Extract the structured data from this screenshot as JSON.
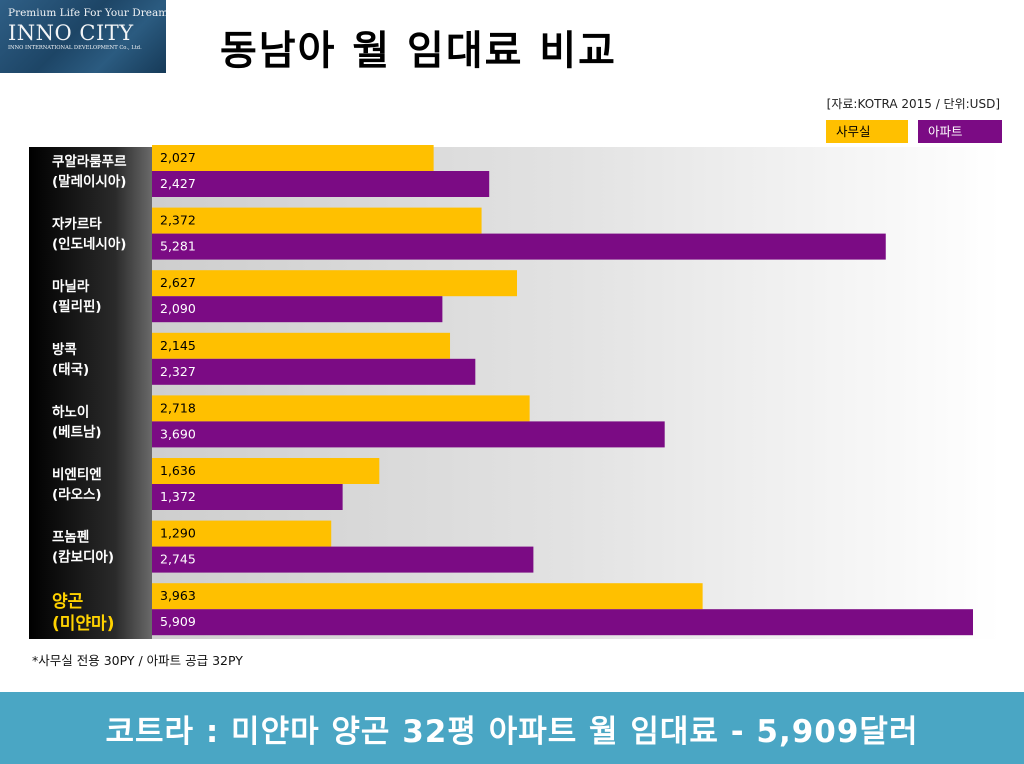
{
  "logo": {
    "tagline": "Premium Life For Your Dream",
    "brand": "INNO CITY",
    "company": "INNO INTERNATIONAL DEVELOPMENT Co., Ltd."
  },
  "title": "동남아 월 임대료 비교",
  "source_note": "[자료:KOTRA 2015 / 단위:USD]",
  "footnote": "*사무실 전용 30PY / 아파트 공급 32PY",
  "banner": "코트라 : 미얀마 양곤 32평 아파트 월 임대료 - 5,909달러",
  "colors": {
    "office": "#ffc000",
    "apartment": "#7b0b84",
    "highlight_label": "#ffd200",
    "banner": "#4aa6c4"
  },
  "chart_data": {
    "type": "bar",
    "orientation": "horizontal",
    "categories": [
      [
        "쿠알라룸푸르",
        "(말레이시아)"
      ],
      [
        "자카르타",
        "(인도네시아)"
      ],
      [
        "마닐라",
        "(필리핀)"
      ],
      [
        "방콕",
        "(태국)"
      ],
      [
        "하노이",
        "(베트남)"
      ],
      [
        "비엔티엔",
        "(라오스)"
      ],
      [
        "프놈펜",
        "(캄보디아)"
      ],
      [
        "양곤",
        "(미얀마)"
      ]
    ],
    "highlight_category": 7,
    "series": [
      {
        "name": "사무실",
        "values": [
          2027,
          2372,
          2627,
          2145,
          2718,
          1636,
          1290,
          3963
        ],
        "labels": [
          "2,027",
          "2,372",
          "2,627",
          "2,145",
          "2,718",
          "1,636",
          "1,290",
          "3,963"
        ]
      },
      {
        "name": "아파트",
        "values": [
          2427,
          5281,
          2090,
          2327,
          3690,
          1372,
          2745,
          5909
        ],
        "labels": [
          "2,427",
          "5,281",
          "2,090",
          "2,327",
          "3,690",
          "1,372",
          "2,745",
          "5,909"
        ]
      }
    ],
    "xlim": [
      0,
      6300
    ],
    "legend_position": "top-right",
    "grid": false
  }
}
